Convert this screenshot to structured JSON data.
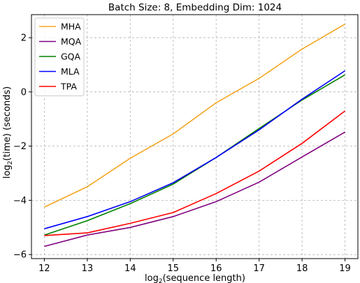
{
  "chart_data": {
    "type": "line",
    "title": "Batch Size: 8, Embedding Dim: 1024",
    "xlabel_prefix": "log",
    "xlabel_sub": "2",
    "xlabel_rest": "(sequence length)",
    "ylabel_prefix": "log",
    "ylabel_sub": "2",
    "ylabel_rest": "(time) (seconds)",
    "x": [
      12,
      13,
      14,
      15,
      16,
      17,
      18,
      19
    ],
    "xlim": [
      11.7,
      19.3
    ],
    "ylim": [
      -6.15,
      2.85
    ],
    "xticks": [
      12,
      13,
      14,
      15,
      16,
      17,
      18,
      19
    ],
    "yticks": [
      -6,
      -4,
      -2,
      0,
      2
    ],
    "grid": true,
    "legend_position": "top-left",
    "series": [
      {
        "name": "MHA",
        "color": "#f5a623",
        "values": [
          -4.25,
          -3.5,
          -2.45,
          -1.55,
          -0.4,
          0.5,
          1.58,
          2.5
        ]
      },
      {
        "name": "MQA",
        "color": "#800080",
        "values": [
          -5.7,
          -5.28,
          -5.0,
          -4.6,
          -4.05,
          -3.33,
          -2.4,
          -1.48
        ]
      },
      {
        "name": "GQA",
        "color": "#008000",
        "values": [
          -5.28,
          -4.75,
          -4.12,
          -3.4,
          -2.42,
          -1.35,
          -0.3,
          0.63
        ]
      },
      {
        "name": "MLA",
        "color": "#0000ff",
        "values": [
          -5.05,
          -4.6,
          -4.05,
          -3.35,
          -2.42,
          -1.4,
          -0.27,
          0.78
        ]
      },
      {
        "name": "TPA",
        "color": "#ff0000",
        "values": [
          -5.3,
          -5.2,
          -4.85,
          -4.45,
          -3.75,
          -2.92,
          -1.9,
          -0.7
        ]
      }
    ]
  }
}
